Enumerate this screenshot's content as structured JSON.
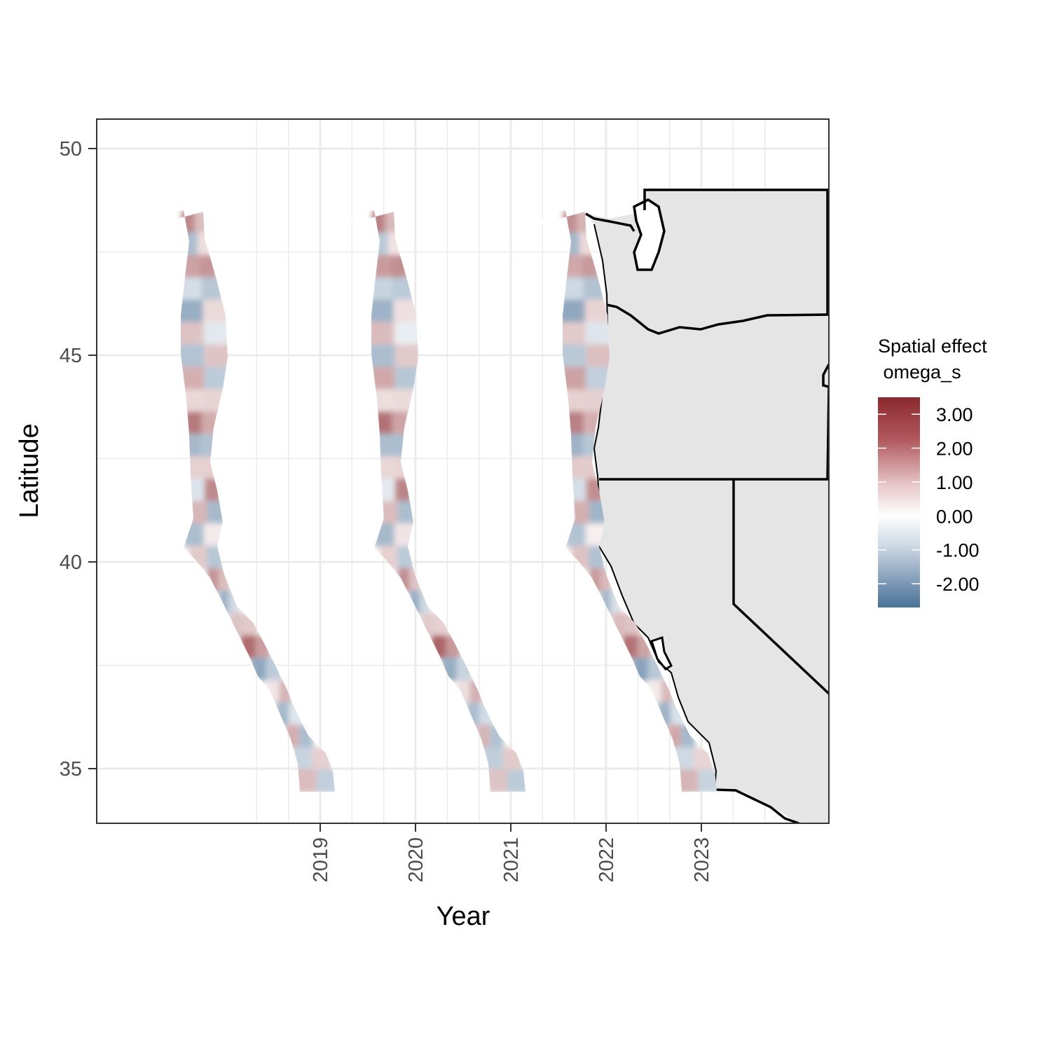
{
  "chart_data": {
    "type": "heatmap",
    "xlabel": "Year",
    "ylabel": "Latitude",
    "x_ticks": [
      "2019",
      "2020",
      "2021",
      "2022",
      "2023"
    ],
    "y_ticks": [
      50,
      45,
      40,
      35
    ],
    "ylim": [
      33.7,
      50.7
    ],
    "grid": true,
    "legend": {
      "title_line1": "Spatial effect",
      "title_line2": " omega_s",
      "position": "right",
      "labels": [
        "3.00",
        "2.00",
        "1.00",
        "0.00",
        "-1.00",
        "-2.00"
      ],
      "values": [
        3,
        2,
        1,
        0,
        -1,
        -2
      ],
      "range": [
        -2.7,
        3.5
      ],
      "colors": {
        "high": "#8b2a2e",
        "mid": "#ffffff",
        "low": "#4a7297"
      }
    },
    "panels": [
      {
        "name": "panel-1",
        "values": [
          1.8,
          -1.2,
          1.4,
          -0.6,
          -1.5,
          0.9,
          -1.1,
          1.2,
          0.6,
          2.0,
          -1.3,
          0.7,
          -0.5,
          1.1,
          -1.2,
          0.8,
          1.6,
          -1.4,
          0.9,
          2.2,
          -1.6,
          0.4,
          -1.3,
          1.2,
          -0.8,
          1.0
        ]
      },
      {
        "name": "panel-2",
        "values": [
          1.9,
          -1.0,
          1.5,
          -0.8,
          -1.4,
          1.0,
          -1.2,
          1.3,
          0.5,
          2.1,
          -1.2,
          0.6,
          -0.4,
          1.0,
          -1.3,
          0.7,
          1.7,
          -1.5,
          0.8,
          2.3,
          -1.5,
          0.5,
          -1.2,
          1.1,
          -0.9,
          0.9
        ]
      },
      {
        "name": "panel-3",
        "values": [
          1.7,
          -1.3,
          1.3,
          -0.7,
          -1.6,
          0.8,
          -1.0,
          1.4,
          0.7,
          1.9,
          -1.4,
          0.8,
          -0.6,
          1.2,
          -1.1,
          0.9,
          1.5,
          -1.3,
          1.0,
          2.1,
          -1.7,
          0.3,
          -1.4,
          1.3,
          -0.7,
          1.1
        ]
      }
    ],
    "map": {
      "land_color": "#e5e5e5",
      "border_color": "#000000",
      "regions": [
        "Washington",
        "Oregon",
        "California",
        "Nevada"
      ]
    }
  }
}
